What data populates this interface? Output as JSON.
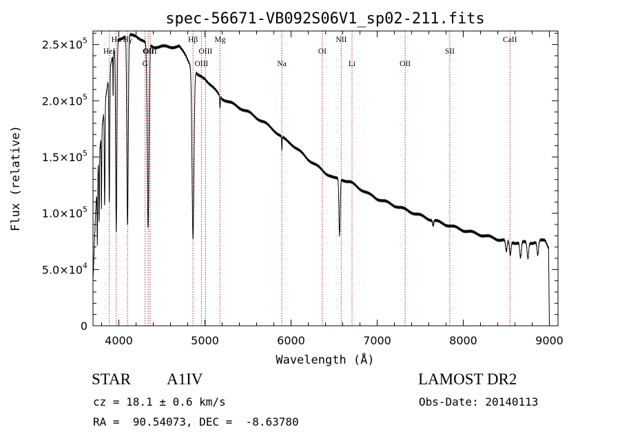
{
  "chart_data": {
    "type": "line",
    "title": "spec-56671-VB092S06V1_sp02-211.fits",
    "xlabel": "Wavelength (Å)",
    "ylabel": "Flux (relative)",
    "xlim": [
      3700,
      9100
    ],
    "ylim": [
      0,
      262000
    ],
    "xticks": [
      4000,
      5000,
      6000,
      7000,
      8000,
      9000
    ],
    "xtick_labels": [
      "4000",
      "5000",
      "6000",
      "7000",
      "8000",
      "9000"
    ],
    "yticks": [
      0,
      50000,
      100000,
      150000,
      200000,
      250000
    ],
    "ytick_labels": [
      {
        "mant": "0",
        "exp": ""
      },
      {
        "mant": "5.0×10",
        "exp": "4"
      },
      {
        "mant": "1.0×10",
        "exp": "5"
      },
      {
        "mant": "1.5×10",
        "exp": "5"
      },
      {
        "mant": "2.0×10",
        "exp": "5"
      },
      {
        "mant": "2.5×10",
        "exp": "5"
      }
    ],
    "grid": false,
    "line_color": "#000000",
    "marker_color": "#b22222",
    "lines": [
      {
        "label": "HeI",
        "x": 3889,
        "row": 2
      },
      {
        "label": "Hα",
        "x": 3970,
        "row": 1
      },
      {
        "label": "Hγ",
        "x": 4101,
        "row": 1
      },
      {
        "label": "G",
        "x": 4305,
        "row": 3
      },
      {
        "label": "OII",
        "x": 4341,
        "row": 2
      },
      {
        "label": "OIII",
        "x": 4363,
        "row": 2
      },
      {
        "label": "Hβ",
        "x": 4861,
        "row": 1
      },
      {
        "label": "OIII",
        "x": 4959,
        "row": 3
      },
      {
        "label": "OIII",
        "x": 5007,
        "row": 2
      },
      {
        "label": "Mg",
        "x": 5175,
        "row": 1
      },
      {
        "label": "Na",
        "x": 5893,
        "row": 3
      },
      {
        "label": "OI",
        "x": 6363,
        "row": 2
      },
      {
        "label": "NII",
        "x": 6583,
        "row": 1
      },
      {
        "label": "Li",
        "x": 6708,
        "row": 3
      },
      {
        "label": "OII",
        "x": 7325,
        "row": 3
      },
      {
        "label": "SII",
        "x": 7843,
        "row": 2
      },
      {
        "label": "CaII",
        "x": 8542,
        "row": 1
      }
    ],
    "spectrum": {
      "continuum": [
        [
          3700,
          40000
        ],
        [
          3730,
          100000
        ],
        [
          3760,
          140000
        ],
        [
          3800,
          175000
        ],
        [
          3850,
          205000
        ],
        [
          3900,
          230000
        ],
        [
          3950,
          245000
        ],
        [
          4000,
          255000
        ],
        [
          4100,
          258000
        ],
        [
          4200,
          258000
        ],
        [
          4300,
          252000
        ],
        [
          4400,
          248000
        ],
        [
          4500,
          248000
        ],
        [
          4600,
          248000
        ],
        [
          4700,
          248000
        ],
        [
          4780,
          240000
        ],
        [
          4860,
          228000
        ],
        [
          4920,
          222000
        ],
        [
          5000,
          220000
        ],
        [
          5100,
          211000
        ],
        [
          5200,
          202000
        ],
        [
          5300,
          198000
        ],
        [
          5400,
          194000
        ],
        [
          5500,
          190000
        ],
        [
          5600,
          185000
        ],
        [
          5700,
          180000
        ],
        [
          5800,
          174000
        ],
        [
          5900,
          167000
        ],
        [
          6000,
          162000
        ],
        [
          6100,
          155000
        ],
        [
          6200,
          148000
        ],
        [
          6300,
          142000
        ],
        [
          6400,
          136000
        ],
        [
          6500,
          131000
        ],
        [
          6600,
          130000
        ],
        [
          6700,
          127000
        ],
        [
          6800,
          122000
        ],
        [
          6900,
          117000
        ],
        [
          7000,
          113000
        ],
        [
          7200,
          107000
        ],
        [
          7400,
          101000
        ],
        [
          7600,
          95000
        ],
        [
          7800,
          90000
        ],
        [
          8000,
          85000
        ],
        [
          8200,
          81000
        ],
        [
          8400,
          77000
        ],
        [
          8600,
          74000
        ],
        [
          8800,
          74000
        ],
        [
          8950,
          76000
        ],
        [
          8990,
          70000
        ],
        [
          9000,
          0
        ]
      ],
      "absorptions": [
        {
          "c": 3750,
          "d": 55000,
          "w": 3
        },
        {
          "c": 3771,
          "d": 60000,
          "w": 3
        },
        {
          "c": 3798,
          "d": 70000,
          "w": 3
        },
        {
          "c": 3835,
          "d": 90000,
          "w": 4
        },
        {
          "c": 3889,
          "d": 115000,
          "w": 5
        },
        {
          "c": 3933,
          "d": 40000,
          "w": 2
        },
        {
          "c": 3970,
          "d": 165000,
          "w": 7
        },
        {
          "c": 4101,
          "d": 170000,
          "w": 8
        },
        {
          "c": 4340,
          "d": 165000,
          "w": 10
        },
        {
          "c": 4861,
          "d": 150000,
          "w": 11
        },
        {
          "c": 5175,
          "d": 10000,
          "w": 4
        },
        {
          "c": 5893,
          "d": 12000,
          "w": 3
        },
        {
          "c": 6563,
          "d": 50000,
          "w": 7
        },
        {
          "c": 7650,
          "d": 5000,
          "w": 6
        },
        {
          "c": 8500,
          "d": 10000,
          "w": 9
        },
        {
          "c": 8545,
          "d": 12000,
          "w": 9
        },
        {
          "c": 8665,
          "d": 14000,
          "w": 9
        },
        {
          "c": 8750,
          "d": 14000,
          "w": 9
        },
        {
          "c": 8865,
          "d": 12000,
          "w": 9
        }
      ]
    }
  },
  "info": {
    "object_class": "STAR",
    "subclass": "A1IV",
    "survey": "LAMOST DR2",
    "cz": "cz = 18.1 ± 0.6 km/s",
    "obs_date": "Obs-Date: 20140113",
    "coords": "RA =  90.54073, DEC =  -8.63780"
  }
}
